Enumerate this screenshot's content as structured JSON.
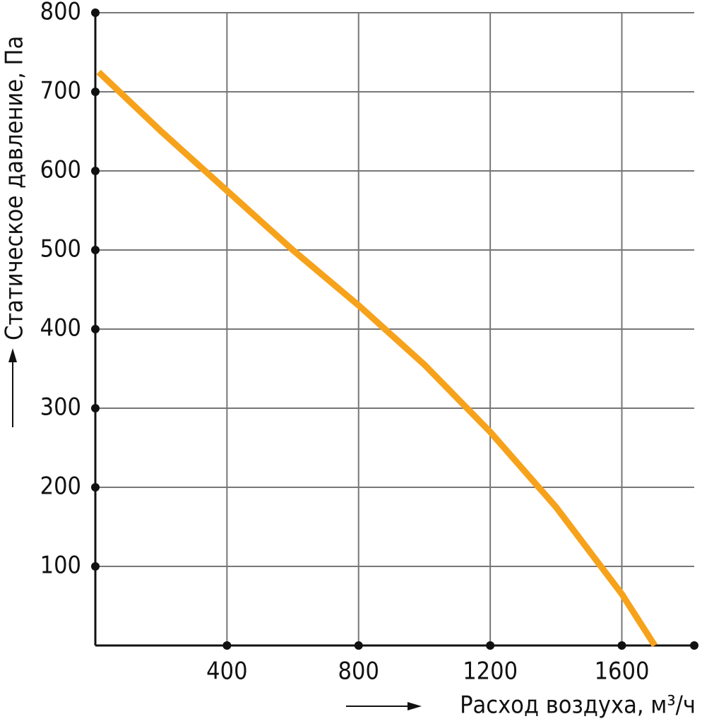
{
  "chart_data": {
    "type": "line",
    "x_label": "Расход воздуха, м³/ч",
    "y_label": "Статическое давление, Па",
    "x": [
      10,
      200,
      400,
      600,
      800,
      1000,
      1200,
      1400,
      1600,
      1700
    ],
    "series": [
      {
        "name": "Статическое давление",
        "color": "#f7a21b",
        "values": [
          725,
          650,
          575,
          500,
          430,
          355,
          270,
          175,
          65,
          0
        ]
      }
    ],
    "xlim": [
      0,
      1820
    ],
    "xticks": [
      400,
      800,
      1200,
      1600
    ],
    "ylim": [
      0,
      800
    ],
    "yticks": [
      100,
      200,
      300,
      400,
      500,
      600,
      700,
      800
    ],
    "grid": true
  }
}
